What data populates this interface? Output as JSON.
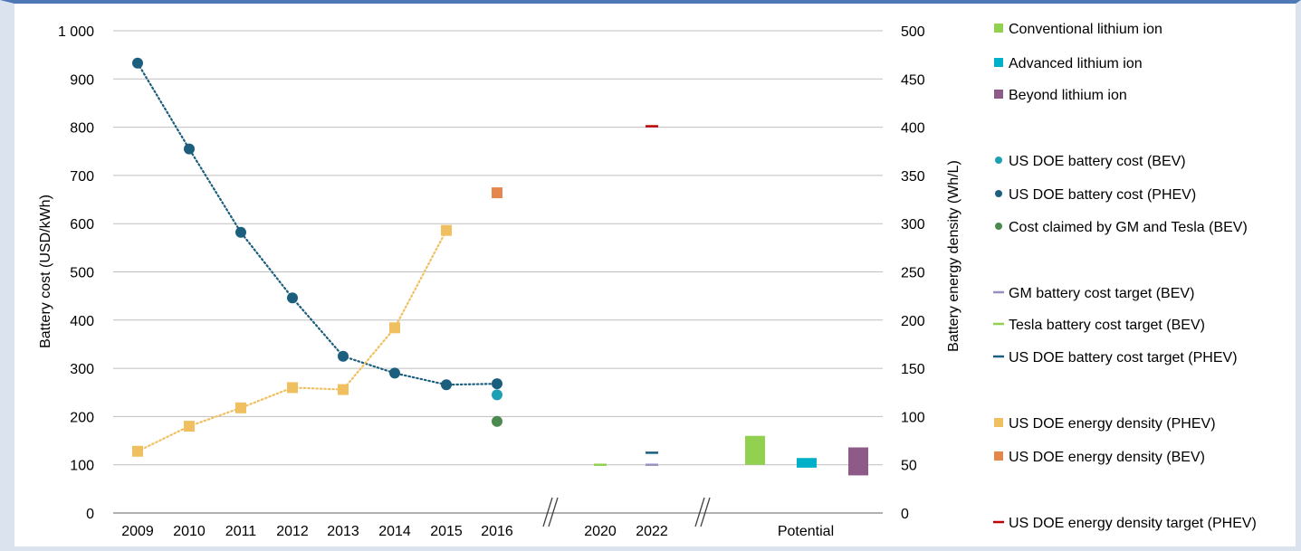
{
  "chart_data": {
    "type": "line",
    "y_left": {
      "label": "Battery cost (USD/kWh)",
      "ticks": [
        "0",
        "100",
        "200",
        "300",
        "400",
        "500",
        "600",
        "700",
        "800",
        "900",
        "1 000"
      ],
      "ylim": [
        0,
        1000
      ]
    },
    "y_right": {
      "label": "Battery energy density (Wh/L)",
      "ticks": [
        "0",
        "50",
        "100",
        "150",
        "200",
        "250",
        "300",
        "350",
        "400",
        "450",
        "500"
      ],
      "ylim": [
        0,
        500
      ]
    },
    "x_labels": [
      "2009",
      "2010",
      "2011",
      "2012",
      "2013",
      "2014",
      "2015",
      "2016",
      "2020",
      "2022",
      "Potential"
    ],
    "grid": true,
    "legend_position": "right",
    "series": [
      {
        "name": "Conventional lithium ion",
        "kind": "range-bar",
        "axis": "right",
        "color": "#92d050",
        "x": "Potential",
        "range": [
          50,
          80
        ]
      },
      {
        "name": "Advanced lithium ion",
        "kind": "range-bar",
        "axis": "right",
        "color": "#00b0c8",
        "x": "Potential",
        "range": [
          47,
          57
        ]
      },
      {
        "name": "Beyond lithium ion",
        "kind": "range-bar",
        "axis": "right",
        "color": "#8e5a87",
        "x": "Potential",
        "range": [
          39,
          68
        ]
      },
      {
        "name": "US DOE battery cost (BEV)",
        "kind": "point",
        "axis": "left",
        "color": "#1ca0b4",
        "points": [
          {
            "x": "2016",
            "y": 245
          }
        ]
      },
      {
        "name": "US DOE battery cost (PHEV)",
        "kind": "line-points",
        "axis": "left",
        "color": "#1b5e7e",
        "points": [
          {
            "x": "2009",
            "y": 933
          },
          {
            "x": "2010",
            "y": 755
          },
          {
            "x": "2011",
            "y": 582
          },
          {
            "x": "2012",
            "y": 446
          },
          {
            "x": "2013",
            "y": 325
          },
          {
            "x": "2014",
            "y": 290
          },
          {
            "x": "2015",
            "y": 266
          },
          {
            "x": "2016",
            "y": 268
          }
        ]
      },
      {
        "name": "Cost claimed by GM and Tesla (BEV)",
        "kind": "point",
        "axis": "left",
        "color": "#4a8a4e",
        "points": [
          {
            "x": "2016",
            "y": 190
          }
        ]
      },
      {
        "name": "GM battery cost target (BEV)",
        "kind": "dash",
        "axis": "left",
        "color": "#9b8fc0",
        "points": [
          {
            "x": "2022",
            "y": 100
          }
        ]
      },
      {
        "name": "Tesla battery cost target (BEV)",
        "kind": "dash",
        "axis": "left",
        "color": "#92d050",
        "points": [
          {
            "x": "2020",
            "y": 100
          }
        ]
      },
      {
        "name": "US DOE battery cost target (PHEV)",
        "kind": "dash",
        "axis": "left",
        "color": "#1b5e7e",
        "points": [
          {
            "x": "2022",
            "y": 125
          }
        ]
      },
      {
        "name": "US DOE energy density (PHEV)",
        "kind": "line-squares",
        "axis": "right",
        "color": "#f0c060",
        "points": [
          {
            "x": "2009",
            "y": 64
          },
          {
            "x": "2010",
            "y": 90
          },
          {
            "x": "2011",
            "y": 109
          },
          {
            "x": "2012",
            "y": 130
          },
          {
            "x": "2013",
            "y": 128
          },
          {
            "x": "2014",
            "y": 192
          },
          {
            "x": "2015",
            "y": 293
          }
        ]
      },
      {
        "name": "US DOE energy density (BEV)",
        "kind": "square",
        "axis": "right",
        "color": "#e5874c",
        "points": [
          {
            "x": "2016",
            "y": 332
          }
        ]
      },
      {
        "name": "US DOE energy density target (PHEV)",
        "kind": "dash",
        "axis": "right",
        "color": "#c00000",
        "points": [
          {
            "x": "2022",
            "y": 401
          }
        ]
      }
    ]
  },
  "colors": {
    "frame_accent": "#4f78b6",
    "grid": "#bfbfbf",
    "axis": "#808080"
  }
}
